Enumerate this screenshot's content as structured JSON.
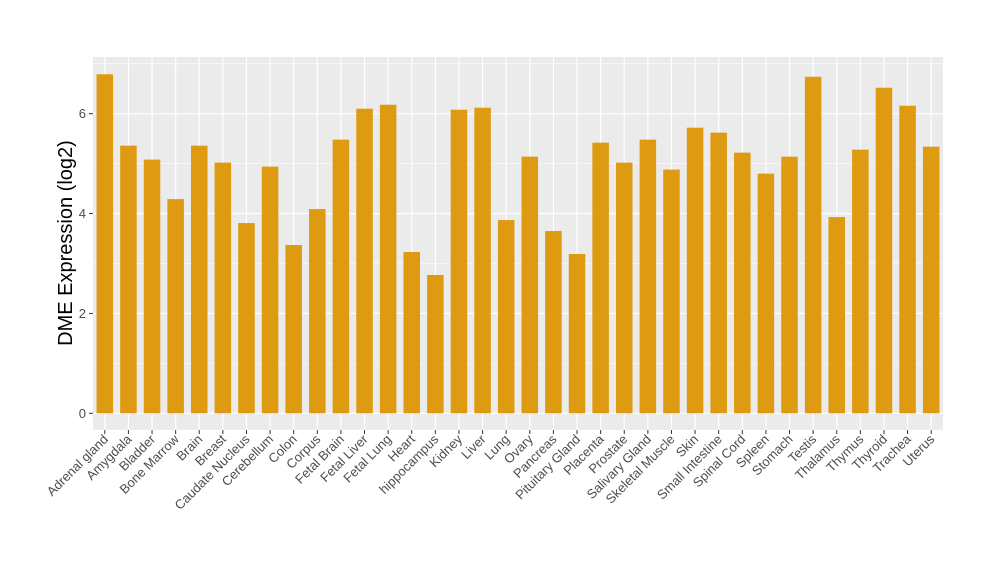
{
  "chart_data": {
    "type": "bar",
    "title": "",
    "xlabel": "",
    "ylabel": "DME Expression (log2)",
    "ylim": [
      -0.35,
      7.1
    ],
    "yticks": [
      0,
      2,
      4,
      6
    ],
    "grid": true,
    "bar_color": "#DE9B12",
    "panel_color": "#EBEBEB",
    "categories": [
      "Adrenal gland",
      "Amygdala",
      "Bladder",
      "Bone Marrow",
      "Brain",
      "Breast",
      "Caudate Nucleus",
      "Cerebellum",
      "Colon",
      "Corpus",
      "Fetal Brain",
      "Fetal Liver",
      "Fetal Lung",
      "Heart",
      "hippocampus",
      "Kidney",
      "Liver",
      "Lung",
      "Ovary",
      "Pancreas",
      "Pituitary Gland",
      "Placenta",
      "Prostate",
      "Salivary Gland",
      "Skeletal Muscle",
      "Skin",
      "Small Intestine",
      "Spinal Cord",
      "Spleen",
      "Stomach",
      "Testis",
      "Thalamus",
      "Thymus",
      "Thyroid",
      "Trachea",
      "Uterus"
    ],
    "values": [
      6.79,
      5.36,
      5.08,
      4.29,
      5.36,
      5.02,
      3.81,
      4.94,
      3.37,
      4.09,
      5.48,
      6.1,
      6.18,
      3.23,
      2.77,
      6.08,
      6.12,
      3.87,
      5.14,
      3.65,
      3.19,
      5.42,
      5.02,
      5.48,
      4.88,
      5.72,
      5.62,
      5.22,
      4.8,
      5.14,
      6.74,
      3.93,
      5.28,
      6.52,
      6.16,
      5.34
    ]
  }
}
